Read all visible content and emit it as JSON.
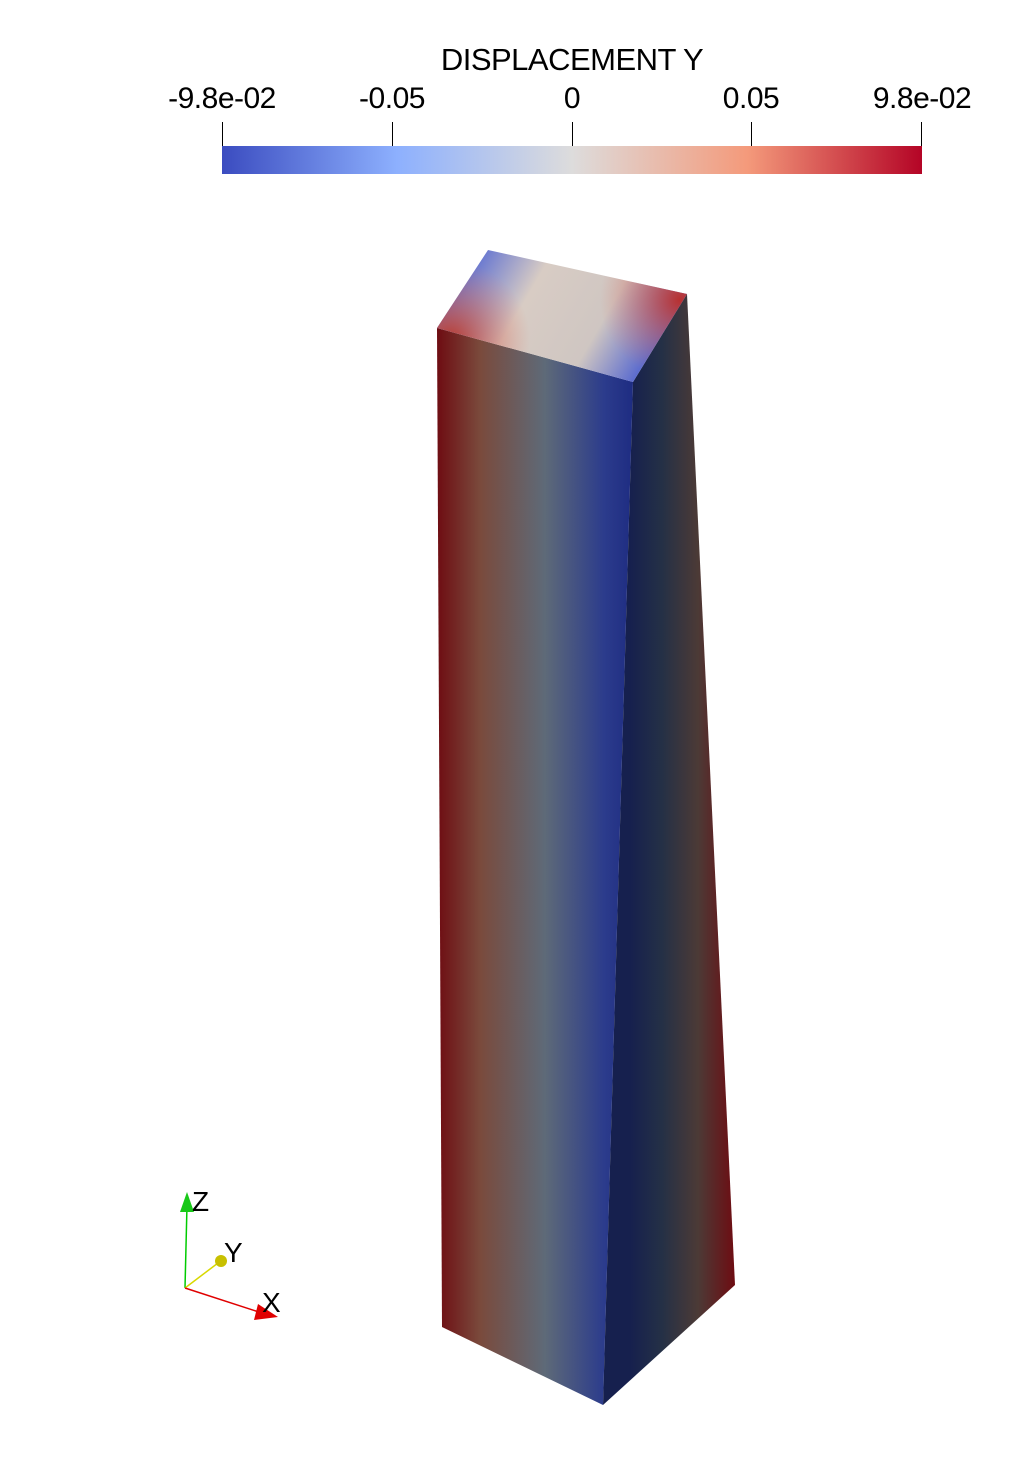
{
  "colorbar": {
    "title": "DISPLACEMENT Y",
    "range": [
      -0.098,
      0.098
    ],
    "tick_labels": [
      "-9.8e-02",
      "-0.05",
      "0",
      "0.05",
      "9.8e-02"
    ],
    "tick_values": [
      -0.098,
      -0.05,
      0,
      0.05,
      0.098
    ],
    "colormap_stops": [
      "#3b4cc0",
      "#8db0fe",
      "#dddcdc",
      "#f49a7b",
      "#b40426"
    ]
  },
  "orientation_axes": {
    "z_label": "Z",
    "y_label": "Y",
    "x_label": "X",
    "z_color": "#00cc00",
    "y_color": "#d8d800",
    "x_color": "#e00000"
  },
  "object": {
    "name": "deformed beam",
    "side_colors": [
      "#7a1016",
      "#5e6a78",
      "#2a3a86",
      "#111a40"
    ],
    "top_colors": [
      "#4a5fd0",
      "#d6c0b8",
      "#e06a5a",
      "#b43a3a"
    ]
  }
}
